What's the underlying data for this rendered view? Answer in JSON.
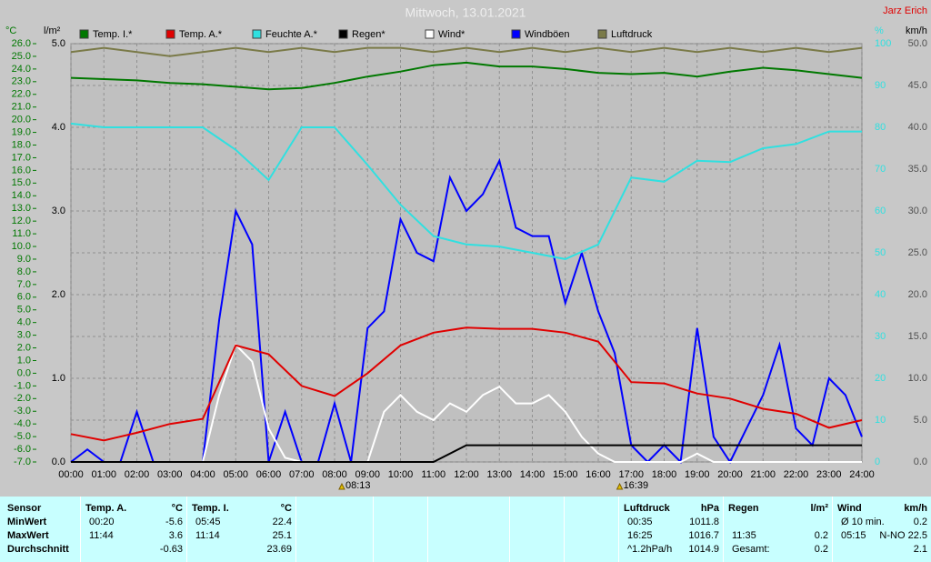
{
  "chart_data": {
    "type": "line",
    "title": "Mittwoch, 13.01.2021",
    "author": "Jarz Erich",
    "y_unit": "°C",
    "y3_unit": "l/m²",
    "y2_unit": "%",
    "y4_unit": "km/h",
    "xlim": [
      0,
      24
    ],
    "xticks": [
      {
        "value": 0,
        "label": "00:00"
      },
      {
        "value": 1,
        "label": "01:00"
      },
      {
        "value": 2,
        "label": "02:00"
      },
      {
        "value": 3,
        "label": "03:00"
      },
      {
        "value": 4,
        "label": "04:00"
      },
      {
        "value": 5,
        "label": "05:00"
      },
      {
        "value": 6,
        "label": "06:00"
      },
      {
        "value": 7,
        "label": "07:00"
      },
      {
        "value": 8,
        "label": "08:00"
      },
      {
        "value": 9,
        "label": "09:00"
      },
      {
        "value": 10,
        "label": "10:00"
      },
      {
        "value": 11,
        "label": "11:00"
      },
      {
        "value": 12,
        "label": "12:00"
      },
      {
        "value": 13,
        "label": "13:00"
      },
      {
        "value": 14,
        "label": "14:00"
      },
      {
        "value": 15,
        "label": "15:00"
      },
      {
        "value": 16,
        "label": "16:00"
      },
      {
        "value": 17,
        "label": "17:00"
      },
      {
        "value": 18,
        "label": "18:00"
      },
      {
        "value": 19,
        "label": "19:00"
      },
      {
        "value": 20,
        "label": "20:00"
      },
      {
        "value": 21,
        "label": "21:00"
      },
      {
        "value": 22,
        "label": "22:00"
      },
      {
        "value": 23,
        "label": "23:00"
      },
      {
        "value": 24,
        "label": "24:00"
      }
    ],
    "ylim": [
      -7,
      26
    ],
    "yticks": [
      {
        "value": -7,
        "label": "-7.0"
      },
      {
        "value": -6,
        "label": "-6.0"
      },
      {
        "value": -5,
        "label": "-5.0"
      },
      {
        "value": -4,
        "label": "-4.0"
      },
      {
        "value": -3,
        "label": "-3.0"
      },
      {
        "value": -2,
        "label": "-2.0"
      },
      {
        "value": -1,
        "label": "-1.0"
      },
      {
        "value": 0,
        "label": "0.0"
      },
      {
        "value": 1,
        "label": "1.0"
      },
      {
        "value": 2,
        "label": "2.0"
      },
      {
        "value": 3,
        "label": "3.0"
      },
      {
        "value": 4,
        "label": "4.0"
      },
      {
        "value": 5,
        "label": "5.0"
      },
      {
        "value": 6,
        "label": "6.0"
      },
      {
        "value": 7,
        "label": "7.0"
      },
      {
        "value": 8,
        "label": "8.0"
      },
      {
        "value": 9,
        "label": "9.0"
      },
      {
        "value": 10,
        "label": "10.0"
      },
      {
        "value": 11,
        "label": "11.0"
      },
      {
        "value": 12,
        "label": "12.0"
      },
      {
        "value": 13,
        "label": "13.0"
      },
      {
        "value": 14,
        "label": "14.0"
      },
      {
        "value": 15,
        "label": "15.0"
      },
      {
        "value": 16,
        "label": "16.0"
      },
      {
        "value": 17,
        "label": "17.0"
      },
      {
        "value": 18,
        "label": "18.0"
      },
      {
        "value": 19,
        "label": "19.0"
      },
      {
        "value": 20,
        "label": "20.0"
      },
      {
        "value": 21,
        "label": "21.0"
      },
      {
        "value": 22,
        "label": "22.0"
      },
      {
        "value": 23,
        "label": "23.0"
      },
      {
        "value": 24,
        "label": "24.0"
      },
      {
        "value": 25,
        "label": "25.0"
      },
      {
        "value": 26,
        "label": "26.0"
      }
    ],
    "y3lim": [
      0,
      5
    ],
    "y3ticks": [
      {
        "value": 0,
        "label": "0.0"
      },
      {
        "value": 1,
        "label": "1.0"
      },
      {
        "value": 2,
        "label": "2.0"
      },
      {
        "value": 3,
        "label": "3.0"
      },
      {
        "value": 4,
        "label": "4.0"
      },
      {
        "value": 5,
        "label": "5.0"
      }
    ],
    "y2lim": [
      0,
      100
    ],
    "y2ticks": [
      0,
      10,
      20,
      30,
      40,
      50,
      60,
      70,
      80,
      90,
      100
    ],
    "y4lim": [
      0,
      50
    ],
    "y4ticks": [
      {
        "value": 0,
        "label": "0.0"
      },
      {
        "value": 5,
        "label": "5.0"
      },
      {
        "value": 10,
        "label": "10.0"
      },
      {
        "value": 15,
        "label": "15.0"
      },
      {
        "value": 20,
        "label": "20.0"
      },
      {
        "value": 25,
        "label": "25.0"
      },
      {
        "value": 30,
        "label": "30.0"
      },
      {
        "value": 35,
        "label": "35.0"
      },
      {
        "value": 40,
        "label": "40.0"
      },
      {
        "value": 45,
        "label": "45.0"
      },
      {
        "value": 50,
        "label": "50.0"
      }
    ],
    "grid": true,
    "series": [
      {
        "name": "Temp. I.*",
        "color": "#007800",
        "axis": "y",
        "x": [
          0,
          1,
          2,
          3,
          4,
          5,
          6,
          7,
          8,
          9,
          10,
          11,
          12,
          13,
          14,
          15,
          16,
          17,
          18,
          19,
          20,
          21,
          22,
          23,
          24
        ],
        "values": [
          23.3,
          23.2,
          23.1,
          22.9,
          22.8,
          22.6,
          22.4,
          22.5,
          22.9,
          23.4,
          23.8,
          24.3,
          24.5,
          24.2,
          24.2,
          24.0,
          23.7,
          23.6,
          23.7,
          23.4,
          23.8,
          24.1,
          23.9,
          23.6,
          23.3
        ]
      },
      {
        "name": "Temp. A.*",
        "color": "#e00000",
        "axis": "y",
        "x": [
          0,
          1,
          2,
          3,
          4,
          5,
          6,
          7,
          8,
          9,
          10,
          11,
          12,
          13,
          14,
          15,
          16,
          17,
          18,
          19,
          20,
          21,
          22,
          23,
          24
        ],
        "values": [
          -4.8,
          -5.3,
          -4.7,
          -4.0,
          -3.6,
          2.2,
          1.5,
          -1.0,
          -1.8,
          0.0,
          2.2,
          3.2,
          3.6,
          3.5,
          3.5,
          3.2,
          2.5,
          -0.7,
          -0.8,
          -1.6,
          -2.0,
          -2.8,
          -3.2,
          -4.3,
          -3.7
        ]
      },
      {
        "name": "Feuchte A.*",
        "color": "#30e0e0",
        "axis": "y2",
        "x": [
          0,
          1,
          2,
          3,
          4,
          5,
          6,
          7,
          8,
          9,
          10,
          11,
          12,
          13,
          14,
          15,
          16,
          17,
          18,
          19,
          20,
          21,
          22,
          23,
          24
        ],
        "values": [
          80.9,
          80,
          80,
          80,
          80,
          74.6,
          67.4,
          80,
          80,
          71,
          61.5,
          54,
          52,
          51.5,
          50,
          48.5,
          52,
          68,
          67,
          72,
          71.7,
          75,
          76,
          79,
          79
        ]
      },
      {
        "name": "Regen*",
        "color": "#000000",
        "axis": "y3",
        "x": [
          0,
          1,
          2,
          3,
          4,
          5,
          6,
          7,
          8,
          9,
          10,
          11,
          12,
          13,
          14,
          15,
          16,
          17,
          18,
          19,
          20,
          21,
          22,
          23,
          24
        ],
        "values": [
          0,
          0,
          0,
          0,
          0,
          0,
          0,
          0,
          0,
          0,
          0,
          0,
          0.2,
          0.2,
          0.2,
          0.2,
          0.2,
          0.2,
          0.2,
          0.2,
          0.2,
          0.2,
          0.2,
          0.2,
          0.2
        ]
      },
      {
        "name": "Wind*",
        "color": "#ffffff",
        "axis": "y4",
        "x": [
          0,
          0.5,
          1,
          1.5,
          2,
          2.5,
          3,
          3.5,
          4,
          4.5,
          5,
          5.5,
          6,
          6.5,
          7,
          7.5,
          8,
          8.5,
          9,
          9.5,
          10,
          10.5,
          11,
          11.5,
          12,
          12.5,
          13,
          13.5,
          14,
          14.5,
          15,
          15.5,
          16,
          16.5,
          17,
          17.5,
          18,
          18.5,
          19,
          19.5,
          20,
          20.5,
          21,
          21.5,
          22,
          22.5,
          23,
          23.5,
          24
        ],
        "values": [
          0,
          0,
          0,
          0,
          0,
          0,
          0,
          0,
          0,
          8,
          14,
          12,
          4,
          0.5,
          0,
          0,
          0,
          0,
          0,
          6,
          8,
          6,
          5,
          7,
          6,
          8,
          9,
          7,
          7,
          8,
          6,
          3,
          1,
          0,
          0,
          0,
          0,
          0,
          1,
          0,
          0,
          0,
          0,
          0,
          0,
          0,
          0,
          0,
          0
        ]
      },
      {
        "name": "Windböen",
        "color": "#0000ff",
        "axis": "y4",
        "x": [
          0,
          0.5,
          1,
          1.5,
          2,
          2.5,
          3,
          3.5,
          4,
          4.5,
          5,
          5.5,
          6,
          6.5,
          7,
          7.5,
          8,
          8.5,
          9,
          9.5,
          10,
          10.5,
          11,
          11.5,
          12,
          12.5,
          13,
          13.5,
          14,
          14.5,
          15,
          15.5,
          16,
          16.5,
          17,
          17.5,
          18,
          18.5,
          19,
          19.5,
          20,
          20.5,
          21,
          21.5,
          22,
          22.5,
          23,
          23.5,
          24
        ],
        "values": [
          0,
          1.5,
          0,
          0,
          6,
          0,
          0,
          0,
          0,
          17,
          30,
          26,
          0,
          6,
          0,
          0,
          7,
          0,
          16,
          18,
          29,
          25,
          24,
          34,
          30,
          32,
          36,
          28,
          27,
          27,
          19,
          25,
          18,
          13,
          2,
          0,
          2,
          0,
          16,
          3,
          0,
          4,
          8,
          14,
          4,
          2,
          10,
          8,
          3
        ]
      },
      {
        "name": "Luftdruck",
        "color": "#7a7a48",
        "axis": "y2",
        "x": [
          0,
          1,
          2,
          3,
          4,
          5,
          6,
          7,
          8,
          9,
          10,
          11,
          12,
          13,
          14,
          15,
          16,
          17,
          18,
          19,
          20,
          21,
          22,
          23,
          24
        ],
        "values": [
          98,
          99,
          98,
          97,
          98,
          99,
          98,
          99,
          98,
          99,
          99,
          98,
          99,
          98,
          99,
          98,
          99,
          98,
          99,
          98,
          99,
          98,
          99,
          98,
          99
        ]
      }
    ],
    "annotations": [
      {
        "x": 8.22,
        "label": "08:13"
      },
      {
        "x": 16.65,
        "label": "16:39"
      }
    ]
  },
  "stats_table": {
    "row_labels": [
      "Sensor",
      "MinWert",
      "MaxWert",
      "Durchschnitt"
    ],
    "groups": [
      {
        "name": "Temp. A.",
        "unit": "°C",
        "rows": [
          [
            "00:20",
            "-5.6"
          ],
          [
            "11:44",
            "3.6"
          ],
          [
            "-0.63"
          ]
        ]
      },
      {
        "name": "Temp. I.",
        "unit": "°C",
        "rows": [
          [
            "05:45",
            "22.4"
          ],
          [
            "11:14",
            "25.1"
          ],
          [
            "23.69"
          ]
        ]
      },
      {
        "name": "Luftdruck",
        "unit": "hPa",
        "rows": [
          [
            "00:35",
            "1011.8"
          ],
          [
            "16:25",
            "1016.7"
          ],
          [
            "^1.2hPa/h",
            "1014.9"
          ]
        ]
      },
      {
        "name": "Regen",
        "unit": "l/m²",
        "rows": [
          [],
          [
            "11:35",
            "0.2"
          ],
          [
            "Gesamt:",
            "0.2"
          ]
        ]
      },
      {
        "name": "Wind",
        "unit": "km/h",
        "rows": [
          [
            "Ø 10 min.",
            "0.2"
          ],
          [
            "05:15",
            "N-NO 22.5"
          ],
          [
            "2.1"
          ]
        ]
      }
    ]
  }
}
